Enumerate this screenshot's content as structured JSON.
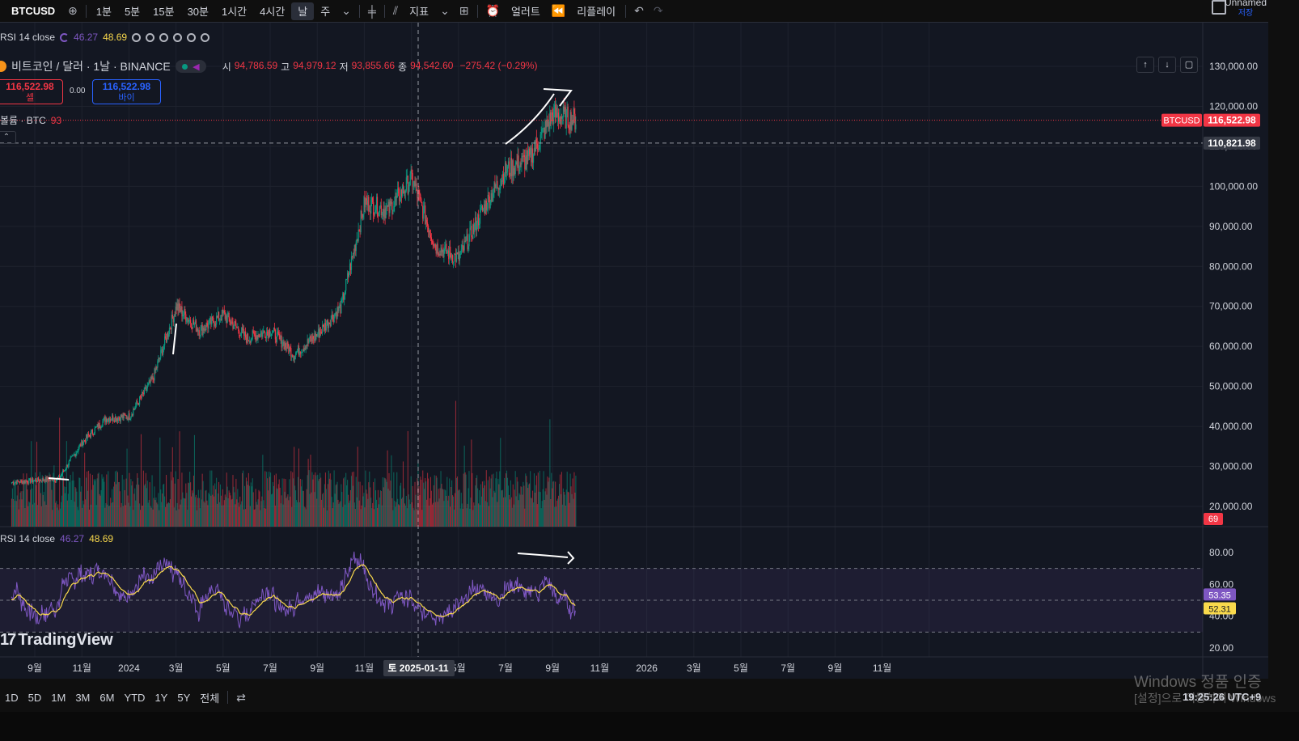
{
  "toolbar": {
    "symbol": "BTCUSD",
    "intervals": [
      "1분",
      "5분",
      "15분",
      "30분",
      "1시간",
      "4시간",
      "날",
      "주"
    ],
    "active_interval": "날",
    "indicators_label": "지표",
    "alerts_label": "얼러트",
    "replay_label": "리플레이",
    "layout_name": "Unnamed",
    "save_label": "저장"
  },
  "rsi_legend_top": {
    "label": "RSI 14 close",
    "v1": "46.27",
    "v2": "48.69"
  },
  "symbol_legend": {
    "title": "비트코인 / 달러 · 1날 · BINANCE",
    "open_label": "시",
    "open": "94,786.59",
    "high_label": "고",
    "high": "94,979.12",
    "low_label": "저",
    "low": "93,855.66",
    "close_label": "종",
    "close": "94,542.60",
    "change": "−275.42 (−0.29%)"
  },
  "trade": {
    "sell_price": "116,522.98",
    "sell_label": "셀",
    "spread": "0.00",
    "buy_price": "116,522.98",
    "buy_label": "바이"
  },
  "volume_legend": {
    "label": "볼륨 · BTC",
    "value": "93"
  },
  "price_axis": {
    "ticks": [
      "130,000.00",
      "120,000.00",
      "110,000.00",
      "100,000.00",
      "90,000.00",
      "80,000.00",
      "70,000.00",
      "60,000.00",
      "50,000.00",
      "40,000.00",
      "30,000.00",
      "20,000.00"
    ],
    "last_symbol_tag": "BTCUSD",
    "last_price": "116,522.98",
    "crosshair_price": "110,821.98",
    "volume_tag": "69"
  },
  "rsi_axis": {
    "ticks": [
      "80.00",
      "60.00",
      "40.00",
      "20.00"
    ],
    "rsi_value": "53.35",
    "ma_value": "52.31"
  },
  "rsi_legend_bottom": {
    "label": "RSI 14 close",
    "v1": "46.27",
    "v2": "48.69"
  },
  "time_axis": {
    "labels": [
      "9월",
      "11월",
      "2024",
      "3월",
      "5월",
      "7월",
      "9월",
      "11월",
      "",
      "5월",
      "7월",
      "9월",
      "11월",
      "2026",
      "3월",
      "5월",
      "7월",
      "9월",
      "11월"
    ],
    "crosshair_date": "토 2025-01-11",
    "crosshair_tail": "월"
  },
  "branding": {
    "logo_text": "TradingView"
  },
  "bottom": {
    "ranges": [
      "1D",
      "5D",
      "1M",
      "3M",
      "6M",
      "YTD",
      "1Y",
      "5Y",
      "전체"
    ],
    "clock": "19:25:26 UTC+9",
    "watermark_line1": "Windows 정품 인증",
    "watermark_line2": "[설정]으로 이동하여 Windows"
  },
  "colors": {
    "up": "#089981",
    "down": "#f23645",
    "rsi": "#7e57c2",
    "rsi_ma": "#f9d94c",
    "bg": "#131722"
  },
  "chart_data": {
    "type": "candlestick",
    "symbol": "BTCUSD",
    "interval": "1D",
    "approx_close_path": [
      {
        "t": "2023-08",
        "v": 26000
      },
      {
        "t": "2023-10",
        "v": 27000
      },
      {
        "t": "2023-11",
        "v": 36000
      },
      {
        "t": "2023-12",
        "v": 42000
      },
      {
        "t": "2024-01",
        "v": 42500
      },
      {
        "t": "2024-02",
        "v": 52000
      },
      {
        "t": "2024-03",
        "v": 70000
      },
      {
        "t": "2024-04",
        "v": 64000
      },
      {
        "t": "2024-05",
        "v": 68000
      },
      {
        "t": "2024-06",
        "v": 62000
      },
      {
        "t": "2024-07",
        "v": 64000
      },
      {
        "t": "2024-08",
        "v": 58000
      },
      {
        "t": "2024-09",
        "v": 63000
      },
      {
        "t": "2024-10",
        "v": 70000
      },
      {
        "t": "2024-11",
        "v": 96000
      },
      {
        "t": "2024-12",
        "v": 94000
      },
      {
        "t": "2025-01",
        "v": 102000
      },
      {
        "t": "2025-02",
        "v": 85000
      },
      {
        "t": "2025-03",
        "v": 82000
      },
      {
        "t": "2025-04",
        "v": 94000
      },
      {
        "t": "2025-05",
        "v": 104000
      },
      {
        "t": "2025-06",
        "v": 107000
      },
      {
        "t": "2025-07",
        "v": 118000
      },
      {
        "t": "2025-08",
        "v": 116500
      }
    ],
    "y_range": [
      18000,
      133000
    ],
    "rsi_range": [
      15,
      90
    ]
  }
}
